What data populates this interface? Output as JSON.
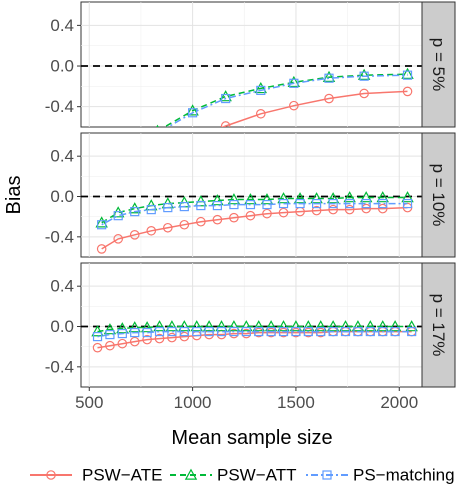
{
  "chart_data": {
    "type": "line",
    "xlabel": "Mean sample size",
    "ylabel": "Bias",
    "xlim": [
      460,
      2110
    ],
    "ylim": [
      -0.6,
      0.63
    ],
    "x_ticks": [
      500,
      1000,
      1500,
      2000
    ],
    "y_ticks": [
      -0.4,
      0.0,
      0.4
    ],
    "y_tick_labels": [
      "-0.4",
      "0.0",
      "0.4"
    ],
    "reference_line": 0.0,
    "grid": true,
    "legend_position": "bottom",
    "series_styles": [
      {
        "name": "PSW−ATE",
        "color": "#f8766d",
        "marker": "circle",
        "dash": "solid"
      },
      {
        "name": "PSW−ATT",
        "color": "#00ba38",
        "marker": "triangle",
        "dash": "dashed"
      },
      {
        "name": "PS−matching",
        "color": "#619cff",
        "marker": "square",
        "dash": "dotdash"
      }
    ],
    "panels": [
      {
        "strip": "p = 5%",
        "series": [
          {
            "name": "PSW−ATE",
            "x": [
              1000,
              1160,
              1330,
              1490,
              1660,
              1830,
              2040
            ],
            "y": [
              -0.72,
              -0.59,
              -0.47,
              -0.39,
              -0.32,
              -0.27,
              -0.25
            ]
          },
          {
            "name": "PSW−ATT",
            "x": [
              830,
              1000,
              1160,
              1330,
              1490,
              1660,
              1830,
              2040
            ],
            "y": [
              -0.64,
              -0.44,
              -0.3,
              -0.22,
              -0.16,
              -0.11,
              -0.09,
              -0.08
            ]
          },
          {
            "name": "PS−matching",
            "x": [
              830,
              1000,
              1160,
              1330,
              1490,
              1660,
              1830,
              2040
            ],
            "y": [
              -0.66,
              -0.46,
              -0.32,
              -0.24,
              -0.17,
              -0.12,
              -0.1,
              -0.09
            ]
          }
        ]
      },
      {
        "strip": "p = 10%",
        "series": [
          {
            "name": "PSW−ATE",
            "x": [
              560,
              640,
              720,
              800,
              880,
              960,
              1040,
              1120,
              1200,
              1280,
              1360,
              1440,
              1520,
              1600,
              1680,
              1760,
              1840,
              1920,
              2040
            ],
            "y": [
              -0.52,
              -0.42,
              -0.38,
              -0.34,
              -0.31,
              -0.28,
              -0.25,
              -0.23,
              -0.21,
              -0.19,
              -0.17,
              -0.16,
              -0.15,
              -0.14,
              -0.13,
              -0.13,
              -0.12,
              -0.12,
              -0.11
            ]
          },
          {
            "name": "PSW−ATT",
            "x": [
              560,
              640,
              720,
              800,
              880,
              960,
              1040,
              1120,
              1200,
              1280,
              1360,
              1440,
              1520,
              1600,
              1680,
              1760,
              1840,
              1920,
              2040
            ],
            "y": [
              -0.26,
              -0.16,
              -0.12,
              -0.09,
              -0.07,
              -0.06,
              -0.05,
              -0.04,
              -0.03,
              -0.03,
              -0.03,
              -0.02,
              -0.02,
              -0.02,
              -0.02,
              -0.01,
              -0.01,
              -0.01,
              -0.01
            ]
          },
          {
            "name": "PS−matching",
            "x": [
              560,
              640,
              720,
              800,
              880,
              960,
              1040,
              1120,
              1200,
              1280,
              1360,
              1440,
              1520,
              1600,
              1680,
              1760,
              1840,
              1920,
              2040
            ],
            "y": [
              -0.28,
              -0.19,
              -0.15,
              -0.13,
              -0.11,
              -0.1,
              -0.09,
              -0.09,
              -0.08,
              -0.08,
              -0.08,
              -0.07,
              -0.07,
              -0.07,
              -0.07,
              -0.07,
              -0.07,
              -0.07,
              -0.07
            ]
          }
        ]
      },
      {
        "strip": "p = 17%",
        "series": [
          {
            "name": "PSW−ATE",
            "x": [
              540,
              600,
              660,
              720,
              780,
              840,
              900,
              960,
              1020,
              1080,
              1140,
              1200,
              1260,
              1320,
              1380,
              1440,
              1500,
              1560,
              1620,
              1680,
              1740,
              1800,
              1860,
              1920,
              1980,
              2060
            ],
            "y": [
              -0.21,
              -0.19,
              -0.17,
              -0.15,
              -0.13,
              -0.12,
              -0.11,
              -0.1,
              -0.09,
              -0.08,
              -0.08,
              -0.07,
              -0.07,
              -0.06,
              -0.06,
              -0.06,
              -0.06,
              -0.06,
              -0.06,
              -0.05,
              -0.05,
              -0.05,
              -0.05,
              -0.05,
              -0.05,
              -0.05
            ]
          },
          {
            "name": "PSW−ATT",
            "x": [
              540,
              600,
              660,
              720,
              780,
              840,
              900,
              960,
              1020,
              1080,
              1140,
              1200,
              1260,
              1320,
              1380,
              1440,
              1500,
              1560,
              1620,
              1680,
              1740,
              1800,
              1860,
              1920,
              1980,
              2060
            ],
            "y": [
              -0.05,
              -0.03,
              -0.02,
              -0.01,
              -0.01,
              0.0,
              0.0,
              0.0,
              0.0,
              0.0,
              0.0,
              0.0,
              0.0,
              0.0,
              0.0,
              0.0,
              0.0,
              0.0,
              0.0,
              0.0,
              0.0,
              0.0,
              0.0,
              0.0,
              0.0,
              0.0
            ]
          },
          {
            "name": "PS−matching",
            "x": [
              540,
              600,
              660,
              720,
              780,
              840,
              900,
              960,
              1020,
              1080,
              1140,
              1200,
              1260,
              1320,
              1380,
              1440,
              1500,
              1560,
              1620,
              1680,
              1740,
              1800,
              1860,
              1920,
              1980,
              2060
            ],
            "y": [
              -0.1,
              -0.08,
              -0.07,
              -0.06,
              -0.06,
              -0.05,
              -0.05,
              -0.05,
              -0.05,
              -0.05,
              -0.05,
              -0.05,
              -0.05,
              -0.05,
              -0.05,
              -0.05,
              -0.05,
              -0.05,
              -0.05,
              -0.05,
              -0.05,
              -0.05,
              -0.05,
              -0.05,
              -0.05,
              -0.05
            ]
          }
        ]
      }
    ]
  }
}
